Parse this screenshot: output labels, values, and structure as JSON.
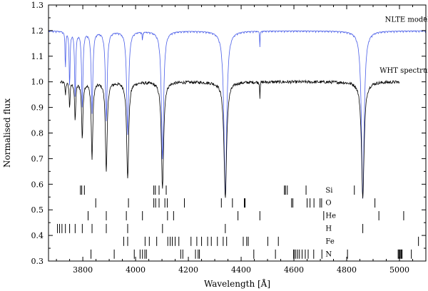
{
  "chart_data": {
    "type": "line",
    "xlabel": "Wavelength [Å]",
    "ylabel": "Normalised flux",
    "xlim": [
      3670,
      5100
    ],
    "ylim": [
      0.3,
      1.3
    ],
    "x_ticks": [
      3800,
      4000,
      4200,
      4400,
      4600,
      4800,
      5000
    ],
    "y_ticks": [
      0.3,
      0.4,
      0.5,
      0.6,
      0.7,
      0.8,
      0.9,
      1.0,
      1.1,
      1.2,
      1.3
    ],
    "grid": false,
    "colors": {
      "model": "#4a5ee8",
      "observed": "#000000"
    },
    "series": [
      {
        "name": "NLTE model",
        "continuum": 1.2,
        "x_range": [
          3670,
          5100
        ],
        "lines": [
          {
            "center": 4861,
            "depth": 0.65,
            "width": 6
          },
          {
            "center": 4340,
            "depth": 0.65,
            "width": 6
          },
          {
            "center": 4102,
            "depth": 0.5,
            "width": 5
          },
          {
            "center": 3970,
            "depth": 0.4,
            "width": 4.5
          },
          {
            "center": 3889,
            "depth": 0.35,
            "width": 4
          },
          {
            "center": 3835,
            "depth": 0.32,
            "width": 3.5
          },
          {
            "center": 3798,
            "depth": 0.3,
            "width": 3
          },
          {
            "center": 3771,
            "depth": 0.26,
            "width": 2.5
          },
          {
            "center": 3750,
            "depth": 0.22,
            "width": 2
          },
          {
            "center": 3734,
            "depth": 0.15,
            "width": 1.5
          },
          {
            "center": 4471,
            "depth": 0.06,
            "width": 1
          },
          {
            "center": 4026,
            "depth": 0.04,
            "width": 1
          }
        ]
      },
      {
        "name": "WHT spectrum",
        "continuum": 1.0,
        "x_range": [
          3715,
          5000
        ],
        "lines": [
          {
            "center": 4861,
            "depth": 0.45,
            "width": 6
          },
          {
            "center": 4340,
            "depth": 0.45,
            "width": 6
          },
          {
            "center": 4102,
            "depth": 0.42,
            "width": 5
          },
          {
            "center": 3970,
            "depth": 0.38,
            "width": 4.5
          },
          {
            "center": 3889,
            "depth": 0.35,
            "width": 4
          },
          {
            "center": 3835,
            "depth": 0.3,
            "width": 3.5
          },
          {
            "center": 3798,
            "depth": 0.22,
            "width": 3
          },
          {
            "center": 3771,
            "depth": 0.15,
            "width": 2.5
          },
          {
            "center": 3750,
            "depth": 0.1,
            "width": 2
          },
          {
            "center": 3734,
            "depth": 0.05,
            "width": 1.5
          },
          {
            "center": 4471,
            "depth": 0.06,
            "width": 1
          }
        ]
      }
    ],
    "line_lists": [
      {
        "element": "Si",
        "y": 0.55,
        "x": [
          3791,
          3796,
          3806,
          4069,
          4075,
          4089,
          4116,
          4564,
          4568,
          4575,
          4646,
          4829
        ]
      },
      {
        "element": "O",
        "y": 0.5,
        "x": [
          3849,
          3973,
          4069,
          4076,
          4089,
          4111,
          4120,
          4185,
          4325,
          4367,
          4412,
          4415,
          4591,
          4596,
          4650,
          4661,
          4676,
          4699,
          4705,
          4907
        ]
      },
      {
        "element": "He",
        "y": 0.45,
        "x": [
          3820,
          3889,
          3965,
          4026,
          4121,
          4144,
          4388,
          4471,
          4713,
          4922,
          5016
        ]
      },
      {
        "element": "H",
        "y": 0.4,
        "x": [
          3704,
          3712,
          3721,
          3734,
          3750,
          3771,
          3798,
          3835,
          3889,
          3970,
          4102,
          4340,
          4861
        ]
      },
      {
        "element": "Fe",
        "y": 0.35,
        "x": [
          3955,
          3970,
          4036,
          4052,
          4080,
          4122,
          4131,
          4139,
          4150,
          4164,
          4210,
          4232,
          4250,
          4273,
          4287,
          4310,
          4332,
          4345,
          4408,
          4421,
          4427,
          4501,
          4541,
          5072
        ]
      },
      {
        "element": "N",
        "y": 0.3,
        "x": [
          3831,
          3919,
          3995,
          4017,
          4026,
          4035,
          4041,
          4171,
          4179,
          4227,
          4237,
          4242,
          4448,
          4530,
          4599,
          4601,
          4607,
          4614,
          4621,
          4631,
          4643,
          4654,
          4675,
          4706,
          4803,
          4995,
          4998,
          5001,
          5005,
          5007,
          5010,
          5045
        ]
      }
    ]
  }
}
